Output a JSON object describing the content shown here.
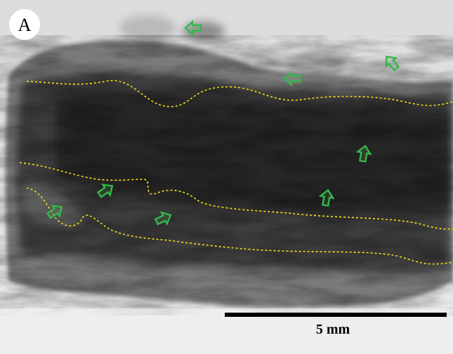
{
  "panel_label": "A",
  "scale_bar": {
    "label": "5 mm"
  }
}
